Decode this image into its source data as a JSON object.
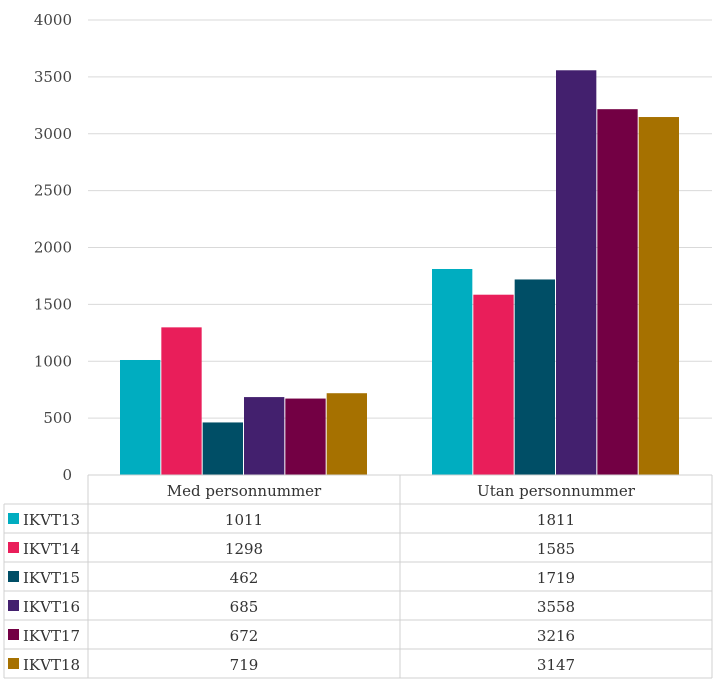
{
  "chart_data": {
    "type": "bar",
    "categories": [
      "Med personnummer",
      "Utan personnummer"
    ],
    "series": [
      {
        "name": "IKVT13",
        "values": [
          1011,
          1811
        ],
        "color": "#00ADC0"
      },
      {
        "name": "IKVT14",
        "values": [
          1298,
          1585
        ],
        "color": "#E91E5A"
      },
      {
        "name": "IKVT15",
        "values": [
          462,
          1719
        ],
        "color": "#004E66"
      },
      {
        "name": "IKVT16",
        "values": [
          685,
          3558
        ],
        "color": "#43206E"
      },
      {
        "name": "IKVT17",
        "values": [
          672,
          3216
        ],
        "color": "#730044"
      },
      {
        "name": "IKVT18",
        "values": [
          719,
          3147
        ],
        "color": "#A67100"
      }
    ],
    "ylim": [
      0,
      4000
    ],
    "yticks": [
      "0",
      "500",
      "1000",
      "1500",
      "2000",
      "2500",
      "3000",
      "3500",
      "4000"
    ],
    "grid": true,
    "legend": "data-table"
  }
}
